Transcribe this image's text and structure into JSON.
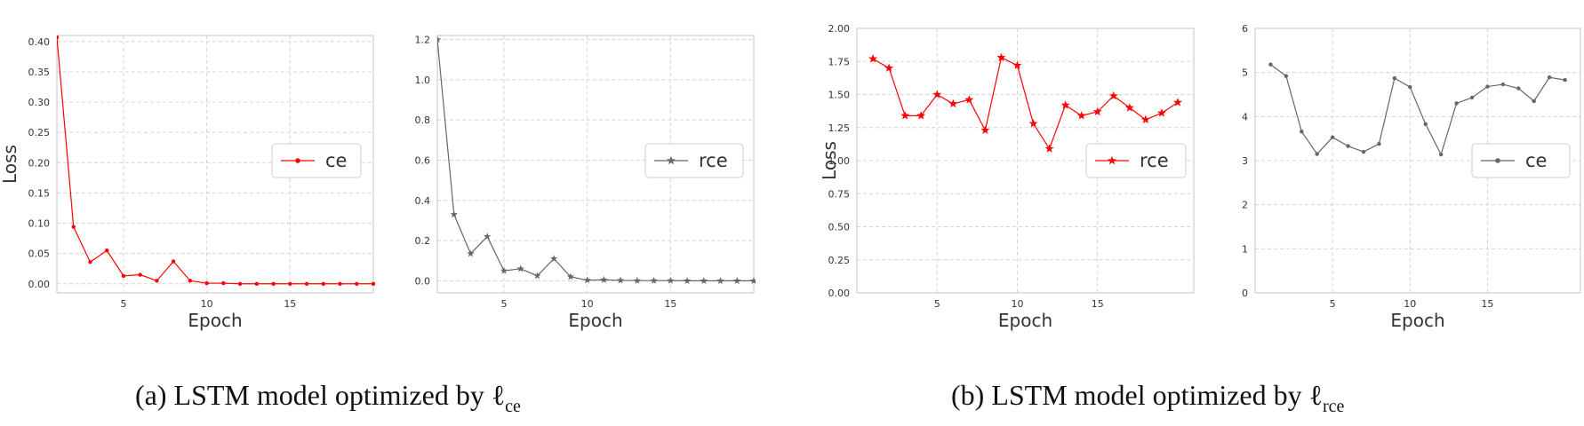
{
  "chart_data": [
    {
      "type": "line",
      "panel": "a-left",
      "xlabel": "Epoch",
      "ylabel": "Loss",
      "xlim": [
        1,
        20
      ],
      "ylim": [
        -0.015,
        0.41
      ],
      "xticks": [
        5,
        10,
        15
      ],
      "yticks": [
        0.0,
        0.05,
        0.1,
        0.15,
        0.2,
        0.25,
        0.3,
        0.35,
        0.4
      ],
      "ytick_labels": [
        "0.00",
        "0.05",
        "0.10",
        "0.15",
        "0.20",
        "0.25",
        "0.30",
        "0.35",
        "0.40"
      ],
      "grid": true,
      "legend_position": "center-right",
      "series": [
        {
          "name": "ce",
          "color": "#ff0000",
          "marker": "dot",
          "x": [
            1,
            2,
            3,
            4,
            5,
            6,
            7,
            8,
            9,
            10,
            11,
            12,
            13,
            14,
            15,
            16,
            17,
            18,
            19,
            20
          ],
          "values": [
            0.407,
            0.094,
            0.036,
            0.055,
            0.013,
            0.015,
            0.005,
            0.037,
            0.005,
            0.001,
            0.001,
            0.0,
            0.0,
            0.0,
            0.0,
            0.0,
            0.0,
            0.0,
            0.0,
            0.0
          ]
        }
      ]
    },
    {
      "type": "line",
      "panel": "a-right",
      "xlabel": "Epoch",
      "ylabel": "",
      "xlim": [
        1,
        20
      ],
      "ylim": [
        -0.06,
        1.22
      ],
      "xticks": [
        5,
        10,
        15
      ],
      "yticks": [
        0.0,
        0.2,
        0.4,
        0.6,
        0.8,
        1.0,
        1.2
      ],
      "ytick_labels": [
        "0.0",
        "0.2",
        "0.4",
        "0.6",
        "0.8",
        "1.0",
        "1.2"
      ],
      "grid": true,
      "legend_position": "center-right",
      "series": [
        {
          "name": "rce",
          "color": "#666666",
          "marker": "star",
          "x": [
            1,
            2,
            3,
            4,
            5,
            6,
            7,
            8,
            9,
            10,
            11,
            12,
            13,
            14,
            15,
            16,
            17,
            18,
            19,
            20
          ],
          "values": [
            1.2,
            0.33,
            0.135,
            0.22,
            0.05,
            0.06,
            0.025,
            0.11,
            0.02,
            0.003,
            0.005,
            0.002,
            0.001,
            0.001,
            0.001,
            0.0,
            0.0,
            0.0,
            0.0,
            0.0
          ]
        }
      ]
    },
    {
      "type": "line",
      "panel": "b-left",
      "xlabel": "Epoch",
      "ylabel": "Loss",
      "xlim": [
        0,
        21
      ],
      "ylim": [
        0,
        2.0
      ],
      "xticks": [
        5,
        10,
        15
      ],
      "yticks": [
        0.0,
        0.25,
        0.5,
        0.75,
        1.0,
        1.25,
        1.5,
        1.75,
        2.0
      ],
      "ytick_labels": [
        "0.00",
        "0.25",
        "0.50",
        "0.75",
        "1.00",
        "1.25",
        "1.50",
        "1.75",
        "2.00"
      ],
      "grid": true,
      "legend_position": "center-right",
      "series": [
        {
          "name": "rce",
          "color": "#ff0000",
          "marker": "star",
          "x": [
            1,
            2,
            3,
            4,
            5,
            6,
            7,
            8,
            9,
            10,
            11,
            12,
            13,
            14,
            15,
            16,
            17,
            18,
            19,
            20
          ],
          "values": [
            1.77,
            1.7,
            1.34,
            1.34,
            1.5,
            1.43,
            1.46,
            1.23,
            1.78,
            1.72,
            1.28,
            1.09,
            1.42,
            1.34,
            1.37,
            1.49,
            1.4,
            1.31,
            1.36,
            1.44
          ]
        }
      ]
    },
    {
      "type": "line",
      "panel": "b-right",
      "xlabel": "Epoch",
      "ylabel": "",
      "xlim": [
        0,
        21
      ],
      "ylim": [
        0,
        6
      ],
      "xticks": [
        5,
        10,
        15
      ],
      "yticks": [
        0,
        1,
        2,
        3,
        4,
        5,
        6
      ],
      "ytick_labels": [
        "0",
        "1",
        "2",
        "3",
        "4",
        "5",
        "6"
      ],
      "grid": true,
      "legend_position": "center-right",
      "series": [
        {
          "name": "ce",
          "color": "#666666",
          "marker": "dot",
          "x": [
            1,
            2,
            3,
            4,
            5,
            6,
            7,
            8,
            9,
            10,
            11,
            12,
            13,
            14,
            15,
            16,
            17,
            18,
            19,
            20
          ],
          "values": [
            5.18,
            4.92,
            3.66,
            3.15,
            3.53,
            3.33,
            3.2,
            3.38,
            4.87,
            4.67,
            3.83,
            3.14,
            4.3,
            4.43,
            4.68,
            4.73,
            4.64,
            4.35,
            4.89,
            4.83
          ]
        }
      ]
    }
  ],
  "captions": [
    {
      "text": "(a) LSTM model optimized by ℓ",
      "subscript": "ce"
    },
    {
      "text": "(b) LSTM model optimized by ℓ",
      "subscript": "rce"
    }
  ]
}
